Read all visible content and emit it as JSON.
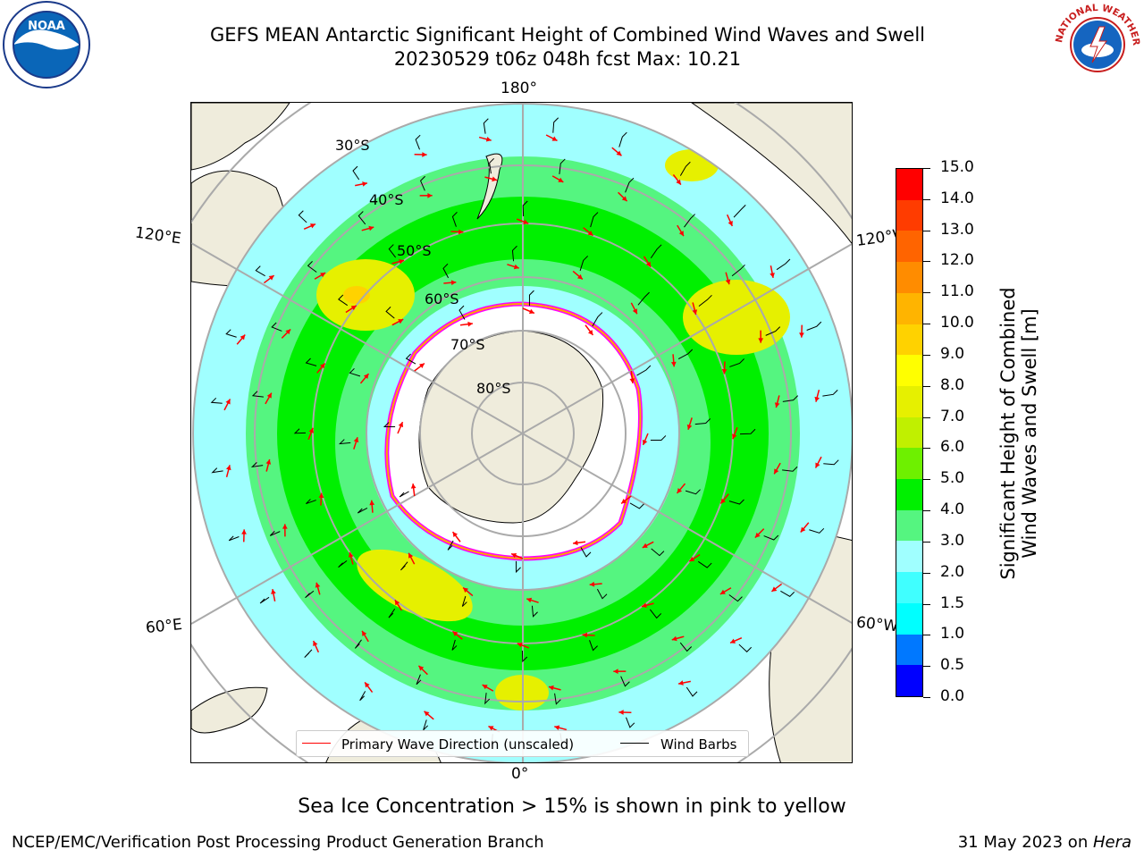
{
  "title": {
    "line1": "GEFS MEAN Antarctic Significant Height of Combined Wind Waves and Swell",
    "line2": "20230529 t06z 048h fcst   Max: 10.21"
  },
  "longitude_labels": {
    "top": "180°",
    "bottom": "0°",
    "upper_left": "120°E",
    "upper_right": "120°W",
    "lower_left": "60°E",
    "lower_right": "60°W"
  },
  "latitude_labels": [
    "30°S",
    "40°S",
    "50°S",
    "60°S",
    "70°S",
    "80°S"
  ],
  "legend": {
    "wave_direction": "Primary Wave Direction (unscaled)",
    "wind_barbs": "Wind Barbs",
    "wave_color": "#ff0000",
    "barb_color": "#000000"
  },
  "colorbar": {
    "title_line1": "Significant Height of Combined",
    "title_line2": "Wind Waves and Swell [m]",
    "ticks": [
      "0.0",
      "0.5",
      "1.0",
      "1.5",
      "2.0",
      "3.0",
      "4.0",
      "5.0",
      "6.0",
      "7.0",
      "8.0",
      "9.0",
      "10.0",
      "11.0",
      "12.0",
      "13.0",
      "14.0",
      "15.0"
    ],
    "colors": [
      "#0000ff",
      "#0078ff",
      "#00ffff",
      "#40ffff",
      "#a0ffff",
      "#55f580",
      "#00f000",
      "#6ef000",
      "#c0f000",
      "#e6f000",
      "#ffff00",
      "#ffd200",
      "#ffb400",
      "#ff8c00",
      "#ff6400",
      "#ff3c00",
      "#ff0000"
    ]
  },
  "map": {
    "land_color": "#efecdc",
    "ice_color": "#ffffff",
    "ice_edge_colors": [
      "#ff00ff",
      "#ffa500"
    ],
    "grid_color": "#aaaaaa"
  },
  "note": "Sea Ice Concentration > 15% is shown in pink to yellow",
  "footer": {
    "left": "NCEP/EMC/Verification Post Processing Product Generation Branch",
    "date": "31 May 2023 on ",
    "machine": "Hera"
  },
  "logos": {
    "left": "NOAA",
    "right": "NATIONAL WEATHER SERVICE"
  }
}
